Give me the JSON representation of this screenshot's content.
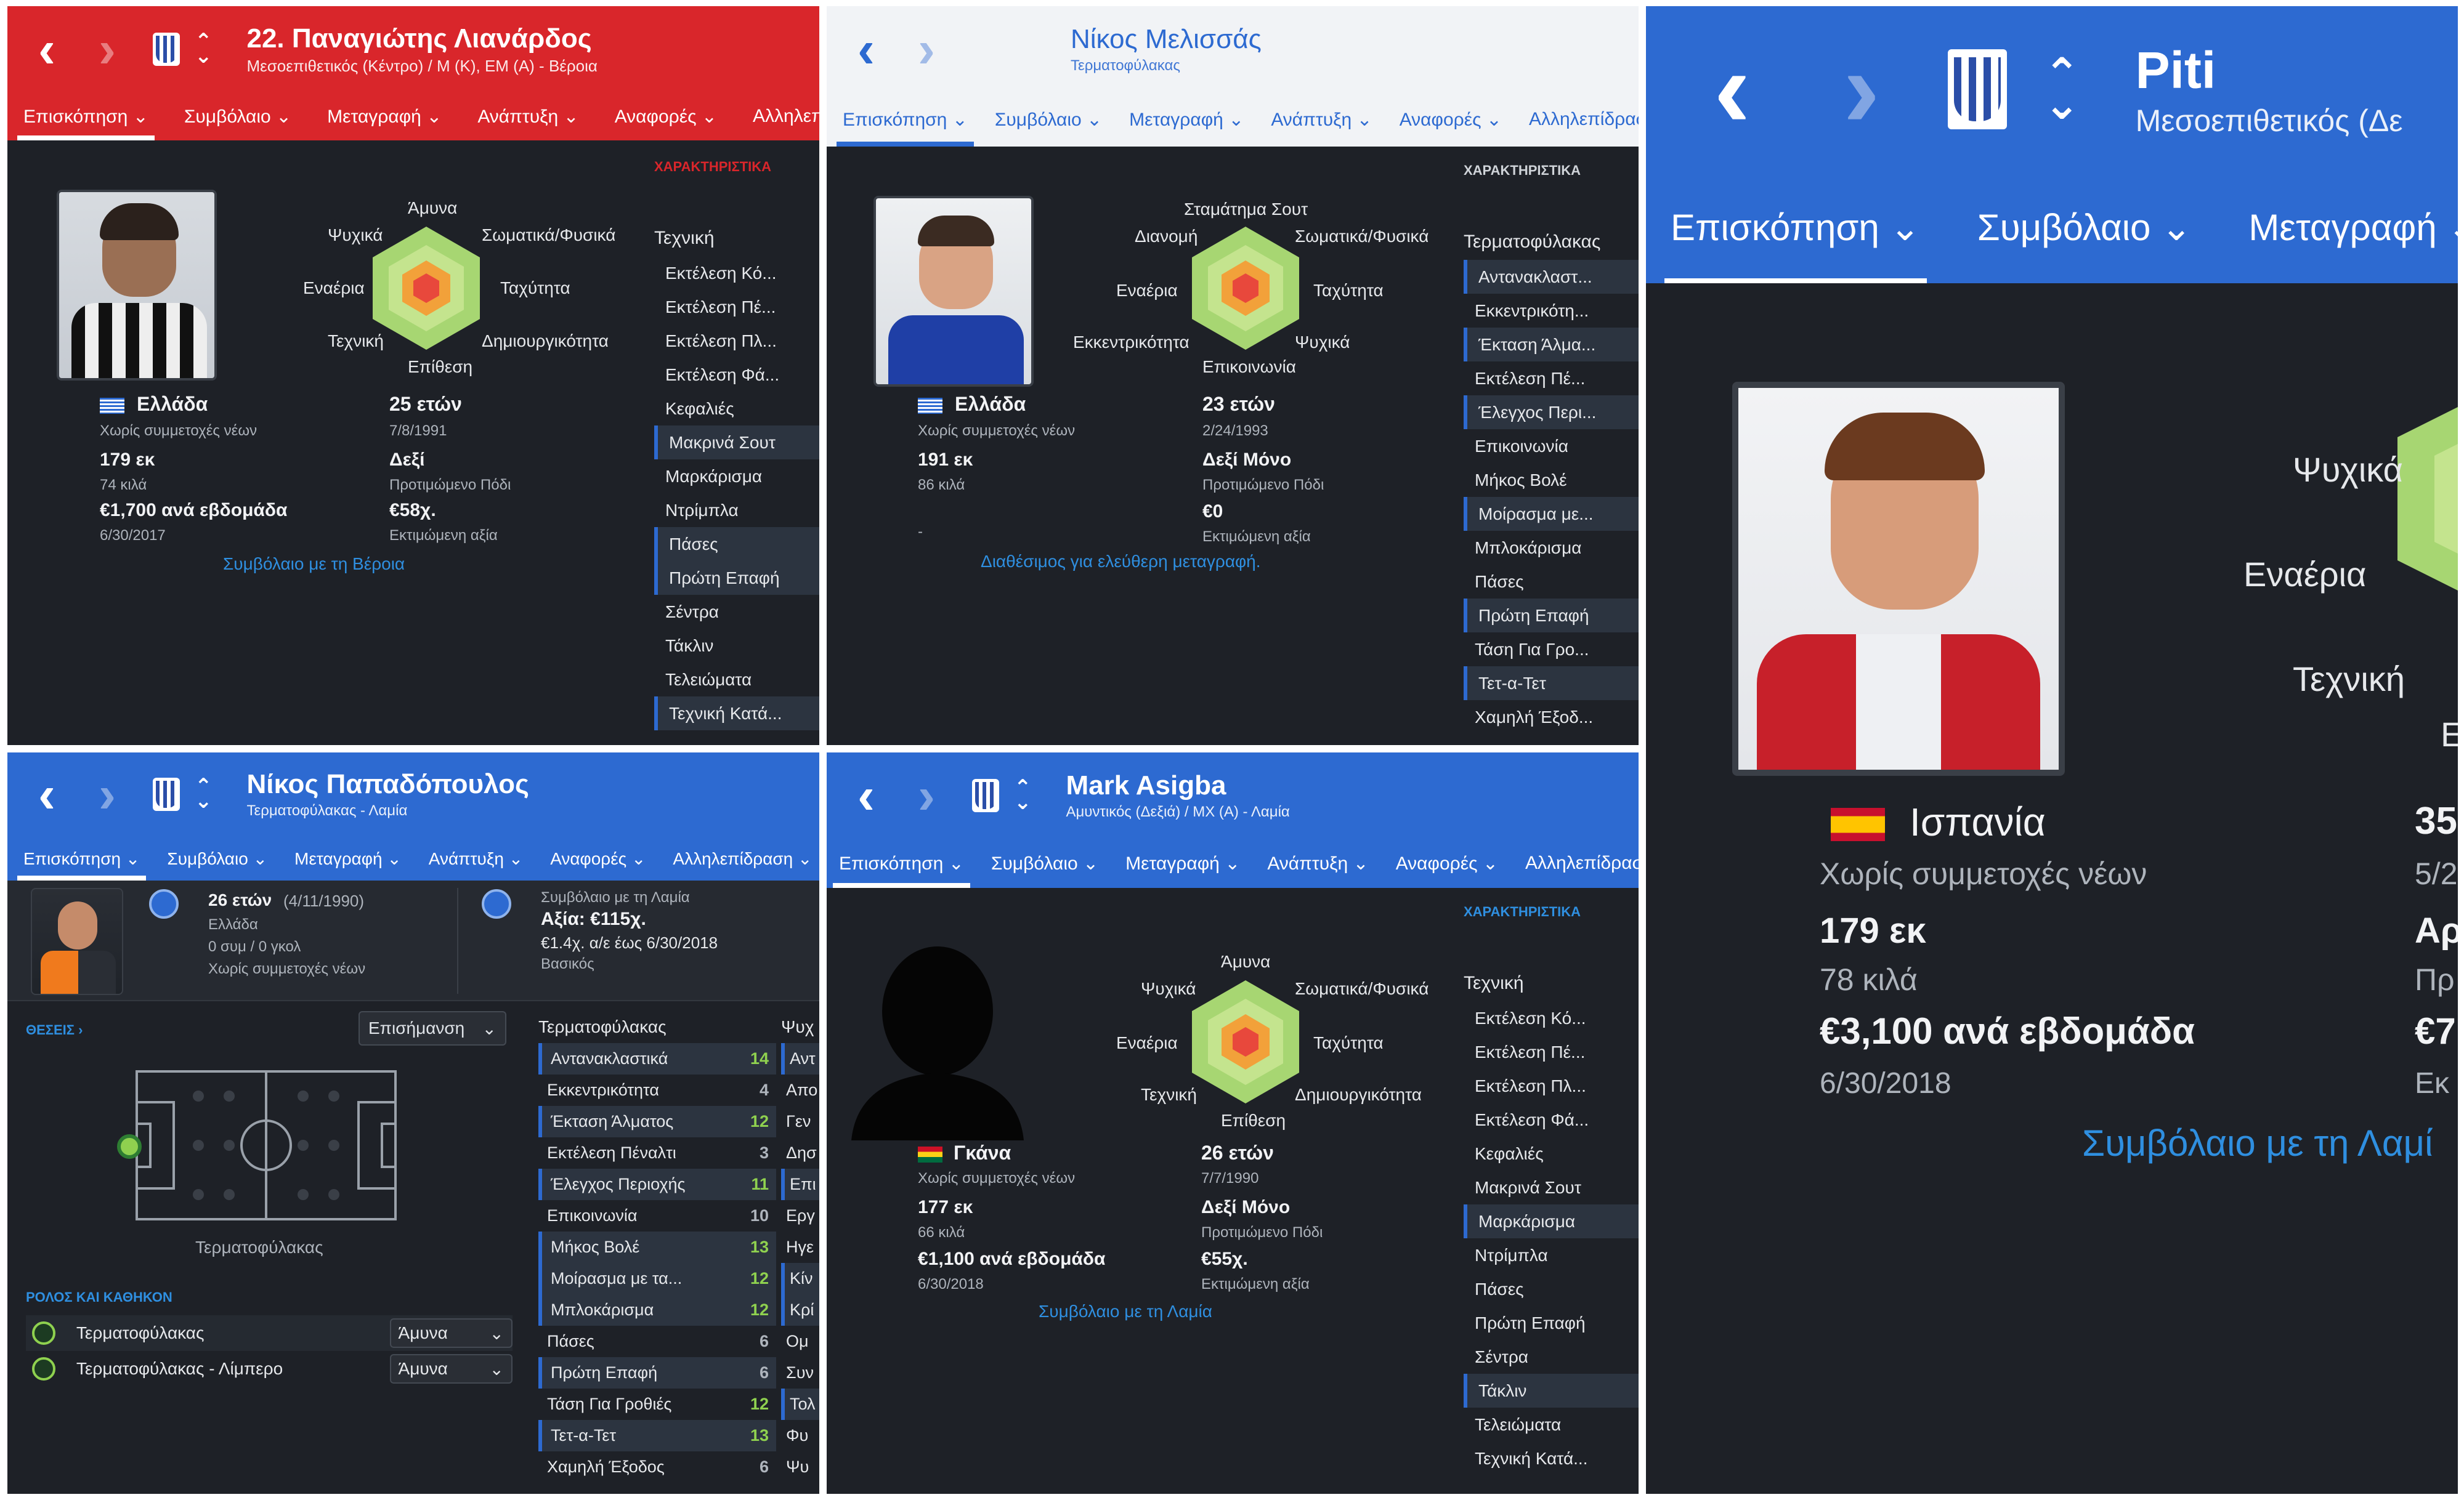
{
  "panels": {
    "p1": {
      "title": "22. Παναγιώτης Λιανάρδος",
      "subtitle": "Μεσοεπιθετικός (Κέντρο) / Μ (Κ), ΕΜ (Α) - Βέροια",
      "tabs": [
        "Επισκόπηση ⌄",
        "Συμβόλαιο ⌄",
        "Μεταγραφή ⌄",
        "Ανάπτυξη ⌄",
        "Αναφορές ⌄",
        "Αλληλεπίδρα"
      ],
      "radar_labels": {
        "top": "Άμυνα",
        "ul": "Ψυχικά",
        "ur": "Σωματικά/Φυσικά",
        "l": "Εναέρια",
        "r": "Ταχύτητα",
        "ll": "Τεχνική",
        "lr": "Δημιουργικότητα",
        "bottom": "Επίθεση"
      },
      "nationality": "Ελλάδα",
      "youth": "Χωρίς συμμετοχές νέων",
      "height": "179 εκ",
      "weight": "74 κιλά",
      "wage": "€1,700 ανά εβδομάδα",
      "expires": "6/30/2017",
      "age": "25 ετών",
      "dob": "7/8/1991",
      "foot": "Δεξί",
      "foot_label": "Προτιμώμενο Πόδι",
      "value": "€58χ.",
      "value_label": "Εκτιμώμενη αξία",
      "contract_link": "Συμβόλαιο με τη Βέροια",
      "attr_section": "ΧΑΡΑΚΤΗΡΙΣΤΙΚΑ",
      "attr_header": "Τεχνική",
      "attrs": [
        "Εκτέλεση Κό...",
        "Εκτέλεση Πέ...",
        "Εκτέλεση Πλ...",
        "Εκτέλεση Φά...",
        "Κεφαλιές",
        "Μακρινά Σουτ",
        "Μαρκάρισμα",
        "Ντρίμπλα",
        "Πάσες",
        "Πρώτη Επαφή",
        "Σέντρα",
        "Τάκλιν",
        "Τελειώματα",
        "Τεχνική Κατά..."
      ]
    },
    "p2": {
      "title": "Νίκος Μελισσάς",
      "subtitle": "Τερματοφύλακας",
      "tabs": [
        "Επισκόπηση ⌄",
        "Συμβόλαιο ⌄",
        "Μεταγραφή ⌄",
        "Ανάπτυξη ⌄",
        "Αναφορές ⌄",
        "Αλληλεπίδρασ"
      ],
      "radar_labels": {
        "top": "Σταμάτημα Σουτ",
        "ul": "Διανομή",
        "ur": "Σωματικά/Φυσικά",
        "l": "Εναέρια",
        "r": "Ταχύτητα",
        "ll": "Εκκεντρικότητα",
        "lr": "Ψυχικά",
        "bottom": "Επικοινωνία"
      },
      "nationality": "Ελλάδα",
      "youth": "Χωρίς συμμετοχές νέων",
      "height": "191 εκ",
      "weight": "86 κιλά",
      "dash": "-",
      "age": "23 ετών",
      "dob": "2/24/1993",
      "foot": "Δεξί Μόνο",
      "foot_label": "Προτιμώμενο Πόδι",
      "value": "€0",
      "value_label": "Εκτιμώμενη αξία",
      "contract_link": "Διαθέσιμος για ελεύθερη μεταγραφή.",
      "attr_section": "ΧΑΡΑΚΤΗΡΙΣΤΙΚΑ",
      "attr_header": "Τερματοφύλακας",
      "attrs": [
        "Αντανακλαστ...",
        "Εκκεντρικότη...",
        "Έκταση Άλμα...",
        "Εκτέλεση Πέ...",
        "Έλεγχος Περι...",
        "Επικοινωνία",
        "Μήκος Βολέ",
        "Μοίρασμα με...",
        "Μπλοκάρισμα",
        "Πάσες",
        "Πρώτη Επαφή",
        "Τάση Για Γρο...",
        "Τετ-α-Τετ",
        "Χαμηλή Έξοδ..."
      ]
    },
    "p3": {
      "title": "Piti",
      "subtitle": "Μεσοεπιθετικός (Δε",
      "tabs": [
        "Επισκόπηση ⌄",
        "Συμβόλαιο ⌄",
        "Μεταγραφή ⌄"
      ],
      "radar_labels": {
        "ul": "Ψυχικά",
        "l": "Εναέρια",
        "ll": "Τεχνική",
        "bottom": "Ε"
      },
      "nationality": "Ισπανία",
      "youth": "Χωρίς συμμετοχές νέων",
      "height": "179 εκ",
      "weight": "78 κιλά",
      "wage": "€3,100 ανά εβδομάδα",
      "expires": "6/30/2018",
      "age_partial": "35",
      "dob_partial": "5/2",
      "foot_partial": "Αρ",
      "foot_label_partial": "Πρ",
      "value_partial": "€7",
      "value_label_partial": "Εκ",
      "contract_link": "Συμβόλαιο με τη Λαμί"
    },
    "p4": {
      "title": "Νίκος Παπαδόπουλος",
      "subtitle": "Τερματοφύλακας - Λαμία",
      "tabs": [
        "Επισκόπηση ⌄",
        "Συμβόλαιο ⌄",
        "Μεταγραφή ⌄",
        "Ανάπτυξη ⌄",
        "Αναφορές ⌄",
        "Αλληλεπίδραση ⌄"
      ],
      "age": "26 ετών",
      "dob": "(4/11/1990)",
      "nationality": "Ελλάδα",
      "apps": "0 συμ / 0 γκολ",
      "youth": "Χωρίς συμμετοχές νέων",
      "contract_title": "Συμβόλαιο με τη Λαμία",
      "contract_value": "Αξία: €115χ.",
      "contract_terms": "€1.4χ. α/ε έως 6/30/2018",
      "contract_role": "Βασικός",
      "positions_label": "ΘΕΣΕΙΣ ›",
      "dropdown": "Επισήμανση",
      "position_name": "Τερματοφύλακας",
      "roles_label": "ΡΟΛΟΣ ΚΑΙ ΚΑΘΗΚΟΝ",
      "roles": [
        {
          "name": "Τερματοφύλακας",
          "duty": "Άμυνα"
        },
        {
          "name": "Τερματοφύλακας - Λίμπερο",
          "duty": "Άμυνα"
        }
      ],
      "attr_header": "Τερματοφύλακας",
      "attr_header2": "Ψυχ",
      "attrs": [
        {
          "name": "Αντανακλαστικά",
          "val": "14",
          "hl": true
        },
        {
          "name": "Εκκεντρικότητα",
          "val": "4",
          "hl": false
        },
        {
          "name": "Έκταση Άλματος",
          "val": "12",
          "hl": true
        },
        {
          "name": "Εκτέλεση Πέναλτι",
          "val": "3",
          "hl": false
        },
        {
          "name": "Έλεγχος Περιοχής",
          "val": "11",
          "hl": true
        },
        {
          "name": "Επικοινωνία",
          "val": "10",
          "hl": false
        },
        {
          "name": "Μήκος Βολέ",
          "val": "13",
          "hl": true
        },
        {
          "name": "Μοίρασμα με τα...",
          "val": "12",
          "hl": true
        },
        {
          "name": "Μπλοκάρισμα",
          "val": "12",
          "hl": true
        },
        {
          "name": "Πάσες",
          "val": "6",
          "hl": false
        },
        {
          "name": "Πρώτη Επαφή",
          "val": "6",
          "hl": true
        },
        {
          "name": "Τάση Για Γροθιές",
          "val": "12",
          "hl": false
        },
        {
          "name": "Τετ-α-Τετ",
          "val": "13",
          "hl": true
        },
        {
          "name": "Χαμηλή Έξοδος",
          "val": "6",
          "hl": false
        }
      ],
      "attrs2": [
        "Αντ",
        "Απο",
        "Γεν",
        "Δησ",
        "Επι",
        "Εργ",
        "Ηγε",
        "Κίν",
        "Κρί",
        "Ομ",
        "Συν",
        "Τολ",
        "Φυ",
        "Ψυ"
      ]
    },
    "p5": {
      "title": "Mark Asigba",
      "subtitle": "Αμυντικός (Δεξιά) / ΜΧ (Α) - Λαμία",
      "tabs": [
        "Επισκόπηση ⌄",
        "Συμβόλαιο ⌄",
        "Μεταγραφή ⌄",
        "Ανάπτυξη ⌄",
        "Αναφορές ⌄",
        "Αλληλεπίδρασ"
      ],
      "radar_labels": {
        "top": "Άμυνα",
        "ul": "Ψυχικά",
        "ur": "Σωματικά/Φυσικά",
        "l": "Εναέρια",
        "r": "Ταχύτητα",
        "ll": "Τεχνική",
        "lr": "Δημιουργικότητα",
        "bottom": "Επίθεση"
      },
      "nationality": "Γκάνα",
      "youth": "Χωρίς συμμετοχές νέων",
      "height": "177 εκ",
      "weight": "66 κιλά",
      "wage": "€1,100 ανά εβδομάδα",
      "expires": "6/30/2018",
      "age": "26 ετών",
      "dob": "7/7/1990",
      "foot": "Δεξί Μόνο",
      "foot_label": "Προτιμώμενο Πόδι",
      "value": "€55χ.",
      "value_label": "Εκτιμώμενη αξία",
      "contract_link": "Συμβόλαιο με τη Λαμία",
      "attr_section": "ΧΑΡΑΚΤΗΡΙΣΤΙΚΑ",
      "attr_header": "Τεχνική",
      "attrs": [
        "Εκτέλεση Κό...",
        "Εκτέλεση Πέ...",
        "Εκτέλεση Πλ...",
        "Εκτέλεση Φά...",
        "Κεφαλιές",
        "Μακρινά Σουτ",
        "Μαρκάρισμα",
        "Ντρίμπλα",
        "Πάσες",
        "Πρώτη Επαφή",
        "Σέντρα",
        "Τάκλιν",
        "Τελειώματα",
        "Τεχνική Κατά..."
      ]
    }
  },
  "colors": {
    "red_header": "#d9262b",
    "blue_header": "#2d6ad1",
    "panel_bg": "#1e2127",
    "link": "#2f8fe0",
    "attr_green": "#8fd14f"
  }
}
